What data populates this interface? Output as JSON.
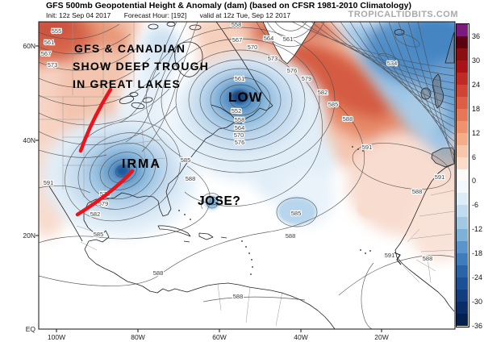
{
  "header": {
    "title": "GFS 500mb Geopotential Height & Anomaly (dam) (based on CFSR 1981-2010 Climatology)",
    "init": "Init: 12z Sep 04 2017",
    "forecast_hour": "Forecast Hour: [192]",
    "valid": "valid at 12z Tue, Sep 12 2017",
    "watermark": "TROPICALTIDBITS.COM"
  },
  "map": {
    "note_line1": "GFS & CANADIAN",
    "note_line2": "SHOW DEEP TROUGH",
    "note_line3": "IN GREAT LAKES",
    "low_label": "LOW",
    "irma_label": "IRMA",
    "jose_label": "JOSE?",
    "trough_color": "#e8141e",
    "lat_labels": [
      "60N",
      "40N",
      "20N",
      "EQ"
    ],
    "lon_labels": [
      "100W",
      "80W",
      "60W",
      "40W",
      "20W"
    ],
    "contour_labels": [
      "555",
      "561",
      "567",
      "573",
      "558",
      "567",
      "561",
      "552",
      "558",
      "564",
      "570",
      "576",
      "564",
      "561",
      "570",
      "573",
      "576",
      "579",
      "582",
      "585",
      "588",
      "591",
      "534",
      "591",
      "588",
      "588",
      "585",
      "585",
      "588",
      "591",
      "588",
      "576",
      "579",
      "582",
      "585",
      "588",
      "588",
      "591"
    ]
  },
  "colorbar": {
    "labels": [
      "36",
      "30",
      "24",
      "18",
      "12",
      "6",
      "0",
      "-6",
      "-12",
      "-18",
      "-24",
      "-30",
      "-36"
    ],
    "cells": [
      "#7c1a80",
      "#5a0010",
      "#8b0e13",
      "#a81318",
      "#bf2b24",
      "#cf4434",
      "#dc5e45",
      "#e67857",
      "#ee936d",
      "#f3ad88",
      "#f8c7a9",
      "#fbdcc9",
      "#fefaf7",
      "#f3f8fc",
      "#ddecf7",
      "#c2dcef",
      "#a1c9e4",
      "#7db1d8",
      "#5995ca",
      "#3e7cbb",
      "#2964a9",
      "#1b5096",
      "#123e81",
      "#0a2d68",
      "#051f4f"
    ]
  }
}
